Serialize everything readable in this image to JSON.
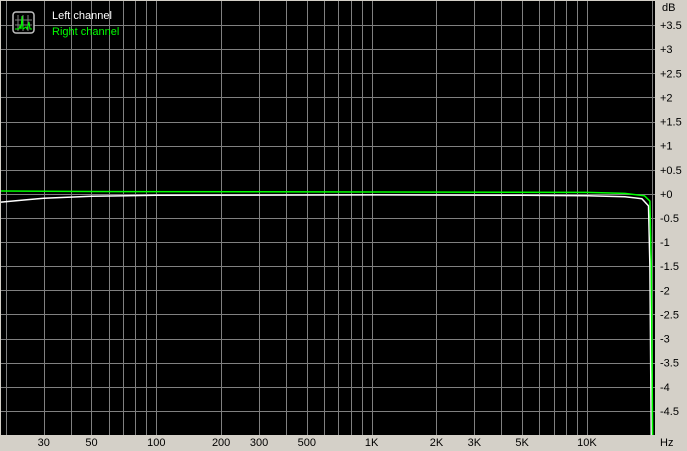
{
  "chart_data": {
    "type": "line",
    "xscale": "log",
    "xlabel": "Hz",
    "ylabel": "dB",
    "xlim": [
      19,
      20700
    ],
    "ylim": [
      -5,
      4
    ],
    "grid": true,
    "legend_position": "top-left",
    "x_ticks": [
      {
        "value": 30,
        "label": "30"
      },
      {
        "value": 50,
        "label": "50"
      },
      {
        "value": 100,
        "label": "100"
      },
      {
        "value": 200,
        "label": "200"
      },
      {
        "value": 300,
        "label": "300"
      },
      {
        "value": 500,
        "label": "500"
      },
      {
        "value": 1000,
        "label": "1K"
      },
      {
        "value": 2000,
        "label": "2K"
      },
      {
        "value": 3000,
        "label": "3K"
      },
      {
        "value": 5000,
        "label": "5K"
      },
      {
        "value": 10000,
        "label": "10K"
      }
    ],
    "y_ticks": [
      {
        "value": 3.5,
        "label": "+3.5"
      },
      {
        "value": 3,
        "label": "+3"
      },
      {
        "value": 2.5,
        "label": "+2.5"
      },
      {
        "value": 2,
        "label": "+2"
      },
      {
        "value": 1.5,
        "label": "+1.5"
      },
      {
        "value": 1,
        "label": "+1"
      },
      {
        "value": 0.5,
        "label": "+0.5"
      },
      {
        "value": 0,
        "label": "+0"
      },
      {
        "value": -0.5,
        "label": "-0.5"
      },
      {
        "value": -1,
        "label": "-1"
      },
      {
        "value": -1.5,
        "label": "-1.5"
      },
      {
        "value": -2,
        "label": "-2"
      },
      {
        "value": -2.5,
        "label": "-2.5"
      },
      {
        "value": -3,
        "label": "-3"
      },
      {
        "value": -3.5,
        "label": "-3.5"
      },
      {
        "value": -4,
        "label": "-4"
      },
      {
        "value": -4.5,
        "label": "-4.5"
      }
    ],
    "series": [
      {
        "name": "Left channel",
        "color": "#ffffff",
        "points": [
          [
            19,
            -0.17
          ],
          [
            25,
            -0.12
          ],
          [
            30,
            -0.09
          ],
          [
            50,
            -0.05
          ],
          [
            100,
            -0.03
          ],
          [
            1000,
            -0.02
          ],
          [
            5000,
            -0.03
          ],
          [
            10000,
            -0.04
          ],
          [
            15000,
            -0.06
          ],
          [
            18000,
            -0.1
          ],
          [
            19300,
            -0.25
          ],
          [
            19600,
            -1.5
          ],
          [
            19900,
            -5.2
          ]
        ]
      },
      {
        "name": "Right channel",
        "color": "#00ff00",
        "points": [
          [
            19,
            0.06
          ],
          [
            50,
            0.05
          ],
          [
            1000,
            0.04
          ],
          [
            10000,
            0.03
          ],
          [
            15000,
            0.01
          ],
          [
            18500,
            -0.04
          ],
          [
            19600,
            -0.15
          ],
          [
            19900,
            -1.5
          ],
          [
            20200,
            -5.2
          ]
        ]
      }
    ]
  },
  "colors": {
    "background": "#000000",
    "grid": "#808080",
    "panel": "#d4d0c8"
  },
  "legend_icon": "spectrum-icon"
}
